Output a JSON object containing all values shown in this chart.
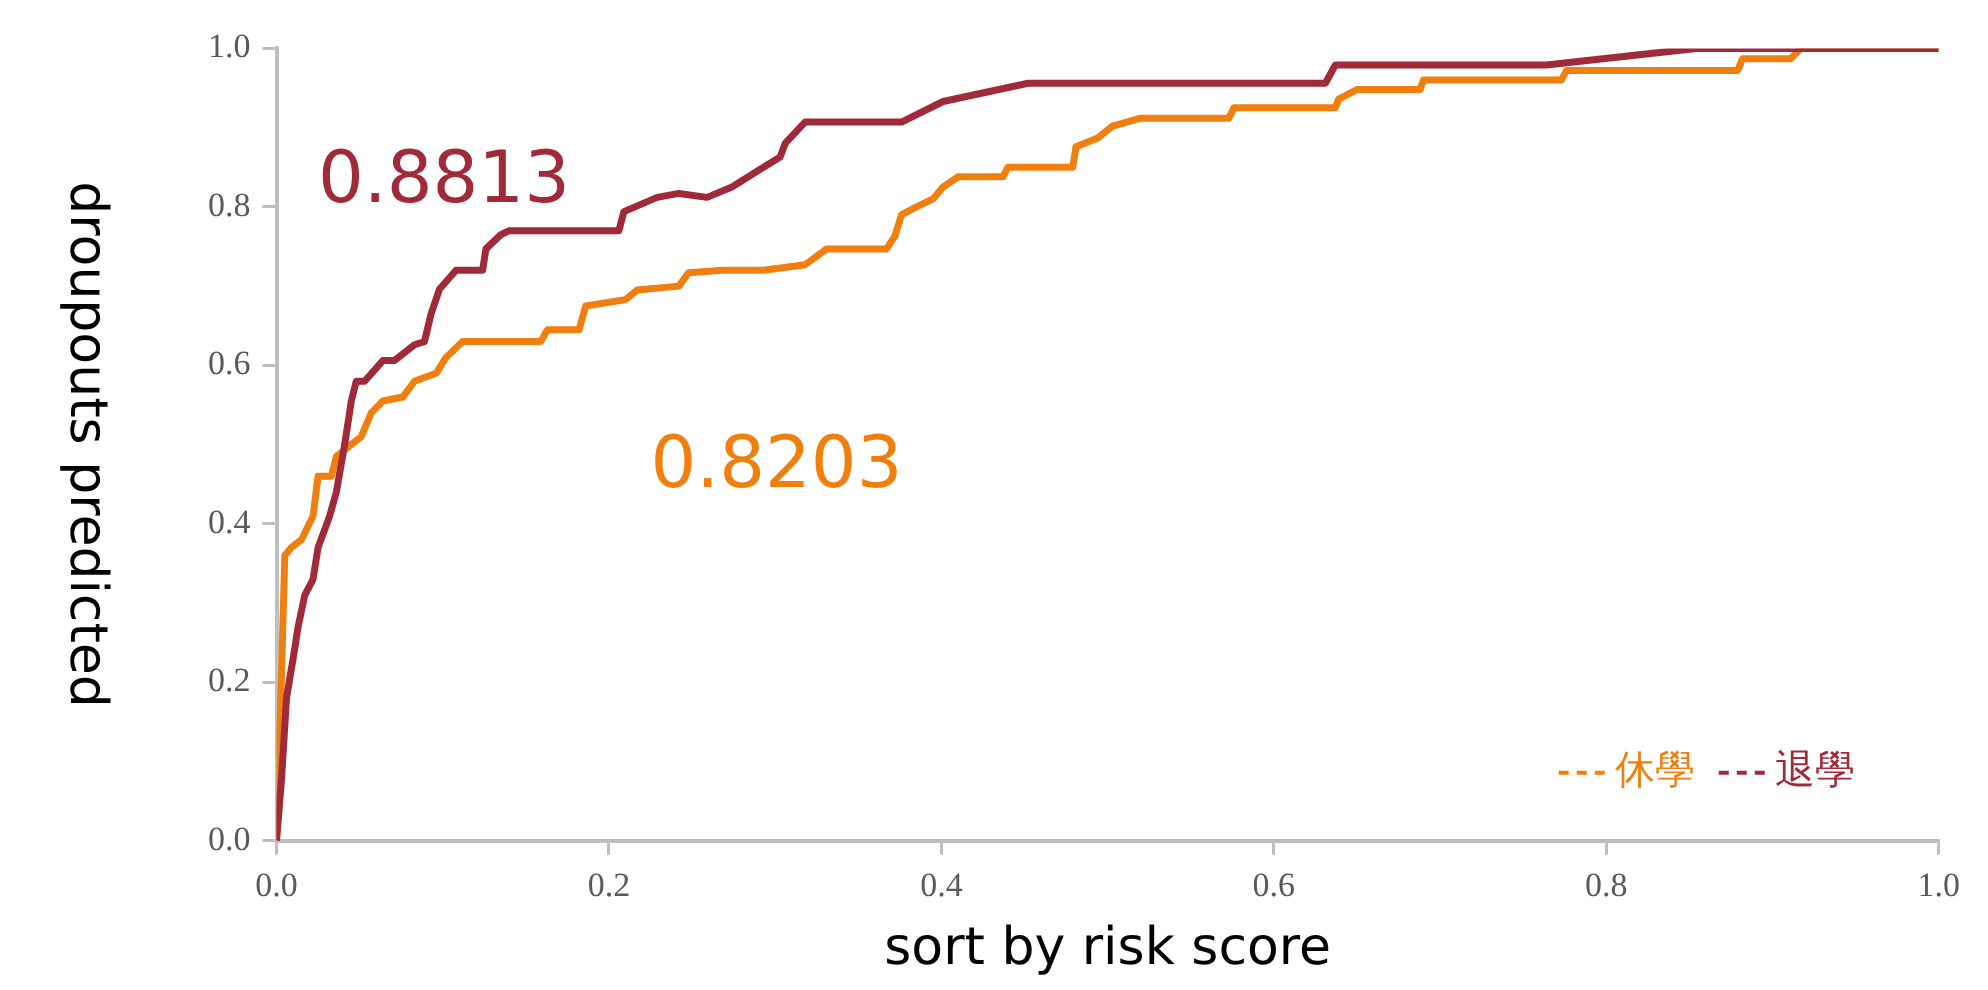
{
  "chart_data": {
    "type": "line",
    "xlabel": "sort by risk score",
    "ylabel": "droupouts predicted",
    "xlim": [
      0,
      1
    ],
    "ylim": [
      0,
      1
    ],
    "xticks": [
      {
        "value": 0,
        "label": "0.0"
      },
      0.2,
      0.4,
      0.6,
      0.8,
      {
        "value": 1,
        "label": "1.0"
      }
    ],
    "yticks": [
      {
        "value": 0,
        "label": "0.0"
      },
      0.2,
      0.4,
      0.6,
      0.8,
      {
        "value": 1,
        "label": "1.0"
      }
    ],
    "grid": false,
    "legend": "bottom right",
    "marker": "none",
    "line_style": "solid",
    "series": [
      {
        "name": "休學",
        "color": "#ef8010",
        "x": [
          0,
          0.003,
          0.005,
          0.009,
          0.015,
          0.022,
          0.025,
          0.033,
          0.036,
          0.045,
          0.051,
          0.057,
          0.064,
          0.076,
          0.083,
          0.096,
          0.102,
          0.112,
          0.159,
          0.163,
          0.182,
          0.186,
          0.21,
          0.217,
          0.242,
          0.248,
          0.268,
          0.293,
          0.318,
          0.331,
          0.367,
          0.372,
          0.376,
          0.385,
          0.395,
          0.401,
          0.41,
          0.437,
          0.44,
          0.479,
          0.481,
          0.494,
          0.503,
          0.52,
          0.573,
          0.576,
          0.637,
          0.639,
          0.65,
          0.688,
          0.69,
          0.773,
          0.776,
          0.879,
          0.882,
          0.911,
          0.917,
          1
        ],
        "values": [
          0,
          0.21,
          0.36,
          0.37,
          0.38,
          0.41,
          0.46,
          0.46,
          0.485,
          0.5,
          0.51,
          0.54,
          0.555,
          0.56,
          0.58,
          0.59,
          0.61,
          0.63,
          0.63,
          0.645,
          0.645,
          0.675,
          0.683,
          0.695,
          0.7,
          0.717,
          0.72,
          0.72,
          0.727,
          0.747,
          0.747,
          0.763,
          0.79,
          0.8,
          0.81,
          0.825,
          0.838,
          0.838,
          0.85,
          0.85,
          0.876,
          0.887,
          0.902,
          0.912,
          0.912,
          0.925,
          0.925,
          0.936,
          0.948,
          0.948,
          0.96,
          0.96,
          0.972,
          0.972,
          0.987,
          0.987,
          1,
          1
        ]
      },
      {
        "name": "退學",
        "color": "#a12a3a",
        "x": [
          0,
          0.003,
          0.006,
          0.01,
          0.013,
          0.017,
          0.022,
          0.025,
          0.032,
          0.036,
          0.041,
          0.045,
          0.048,
          0.053,
          0.064,
          0.071,
          0.083,
          0.089,
          0.093,
          0.098,
          0.108,
          0.124,
          0.126,
          0.135,
          0.14,
          0.206,
          0.209,
          0.229,
          0.242,
          0.259,
          0.274,
          0.293,
          0.303,
          0.306,
          0.318,
          0.376,
          0.401,
          0.452,
          0.631,
          0.637,
          0.764,
          0.854,
          1
        ],
        "values": [
          0,
          0.077,
          0.18,
          0.23,
          0.27,
          0.31,
          0.33,
          0.37,
          0.41,
          0.44,
          0.5,
          0.555,
          0.58,
          0.58,
          0.606,
          0.606,
          0.626,
          0.63,
          0.665,
          0.696,
          0.72,
          0.72,
          0.747,
          0.765,
          0.77,
          0.77,
          0.794,
          0.812,
          0.817,
          0.812,
          0.825,
          0.85,
          0.863,
          0.88,
          0.907,
          0.907,
          0.933,
          0.956,
          0.956,
          0.979,
          0.979,
          1,
          1
        ]
      }
    ],
    "annotations": [
      "0.8813",
      "0.8203"
    ]
  }
}
